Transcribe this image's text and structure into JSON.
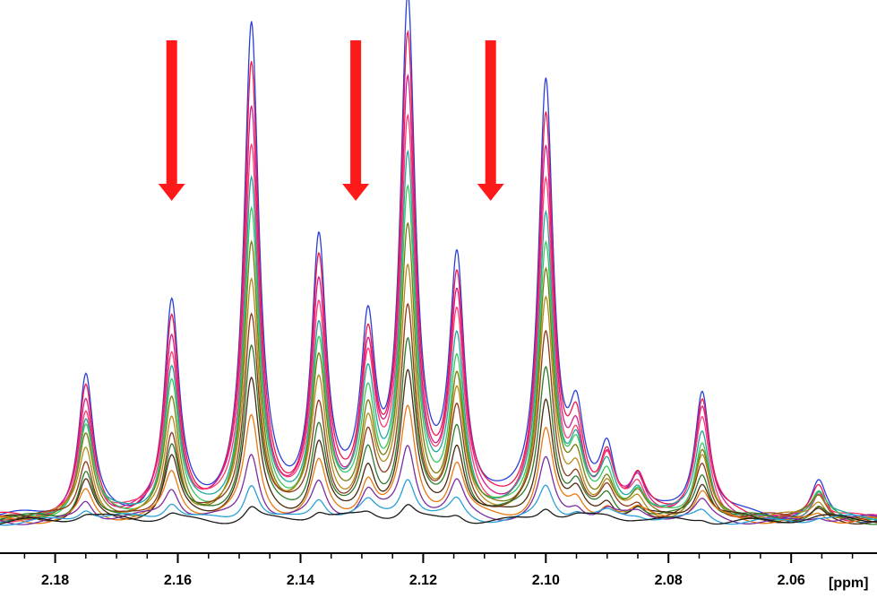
{
  "chart_data": {
    "type": "line",
    "title": "",
    "xlabel": "[ppm]",
    "ylabel": "",
    "x_reversed": true,
    "xlim": [
      2.189,
      2.046
    ],
    "x_ticks": [
      2.18,
      2.16,
      2.14,
      2.12,
      2.1,
      2.08,
      2.06
    ],
    "x_tick_labels": [
      "2.18",
      "2.16",
      "2.14",
      "2.12",
      "2.10",
      "2.08",
      "2.06"
    ],
    "ylim": [
      0,
      1
    ],
    "grid": false,
    "legend": "none",
    "colors": {
      "axis": "#000000",
      "arrow": "#ff1a1a",
      "series": [
        "#2b3fd8",
        "#f01848",
        "#d21e8e",
        "#ff3a6e",
        "#1fa7a0",
        "#38c85a",
        "#7a7a10",
        "#b28a18",
        "#8b3a1a",
        "#2d7a2d",
        "#4a2a10",
        "#e87810",
        "#7a2da0",
        "#2aa0d8",
        "#1a1a1a"
      ]
    },
    "baseline": 0.02,
    "peaks": [
      {
        "x": 2.175,
        "width": 0.00145,
        "amplitude": 0.27
      },
      {
        "x": 2.161,
        "width": 0.00145,
        "amplitude": 0.4
      },
      {
        "x": 2.148,
        "width": 0.00145,
        "amplitude": 0.92
      },
      {
        "x": 2.137,
        "width": 0.00145,
        "amplitude": 0.51
      },
      {
        "x": 2.129,
        "width": 0.00145,
        "amplitude": 0.34
      },
      {
        "x": 2.1225,
        "width": 0.00145,
        "amplitude": 0.96
      },
      {
        "x": 2.1145,
        "width": 0.00145,
        "amplitude": 0.47
      },
      {
        "x": 2.1,
        "width": 0.00145,
        "amplitude": 0.82
      },
      {
        "x": 2.095,
        "width": 0.00145,
        "amplitude": 0.16
      },
      {
        "x": 2.09,
        "width": 0.00145,
        "amplitude": 0.12
      },
      {
        "x": 2.085,
        "width": 0.00145,
        "amplitude": 0.07
      },
      {
        "x": 2.0745,
        "width": 0.00145,
        "amplitude": 0.24
      },
      {
        "x": 2.0555,
        "width": 0.00145,
        "amplitude": 0.07
      }
    ],
    "series_scales": [
      1.0,
      0.92,
      0.84,
      0.77,
      0.7,
      0.63,
      0.56,
      0.49,
      0.42,
      0.35,
      0.28,
      0.21,
      0.14,
      0.08,
      0.03
    ],
    "arrows_at_ppm": [
      2.161,
      2.131,
      2.109
    ]
  }
}
